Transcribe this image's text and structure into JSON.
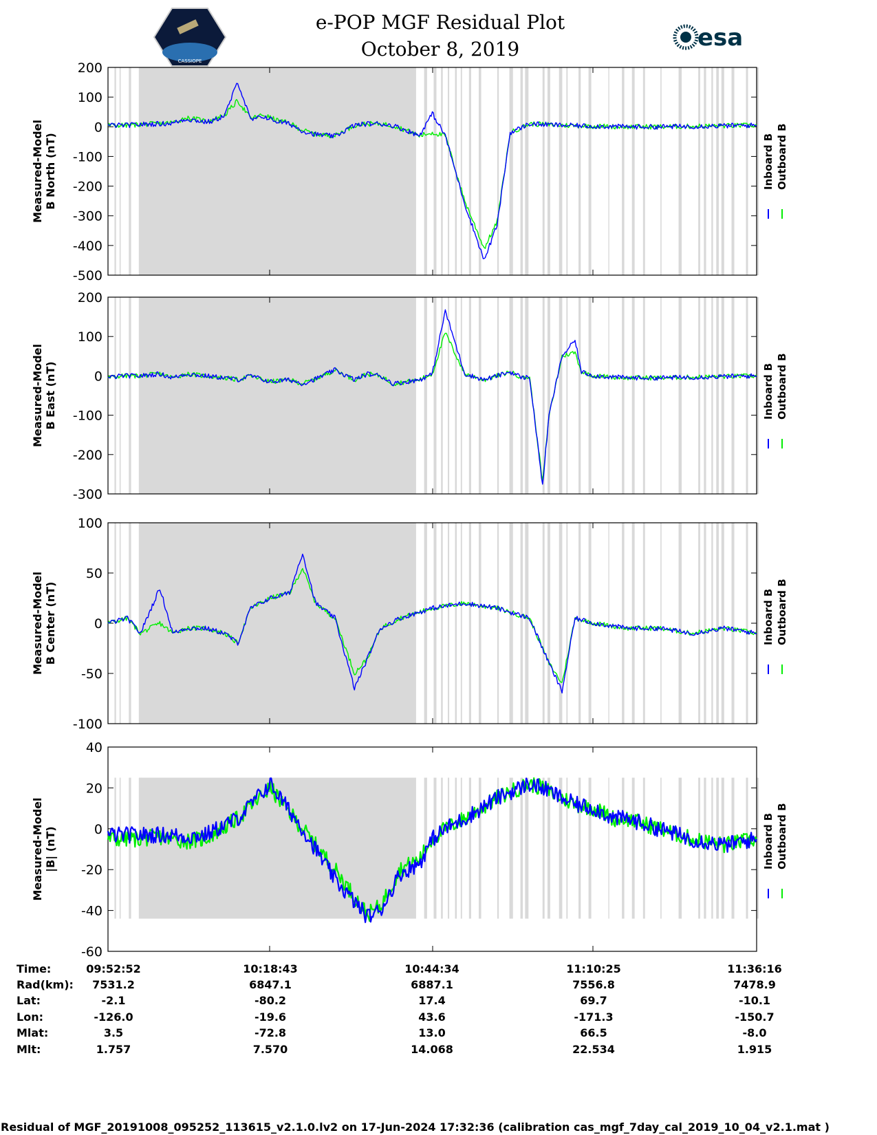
{
  "header": {
    "title_line1": "e-POP MGF Residual Plot",
    "title_line2": "October 8, 2019",
    "esa_logo_text": "esa",
    "cassiope_logo_text": "CASSIOPE"
  },
  "colors": {
    "inboard": "#0000ff",
    "outboard": "#00ee00",
    "gap_shading": "#d9d9d9",
    "axis": "#000000"
  },
  "legend": {
    "inboard_label": "Inboard B",
    "outboard_label": "Outboard B"
  },
  "chart_data": [
    {
      "type": "line",
      "id": "north",
      "ylabel_line1": "Measured-Model",
      "ylabel_line2": "B North (nT)",
      "ylim": [
        -500,
        200
      ],
      "yticks": [
        200,
        100,
        0,
        -100,
        -200,
        -300,
        -400,
        -500
      ],
      "ytick_labels": [
        "200",
        "100",
        "0",
        "-100",
        "-200",
        "-300",
        "-400",
        "-500"
      ],
      "series": [
        {
          "name": "Outboard B",
          "x": [
            0,
            2,
            3,
            5,
            8,
            10,
            12,
            14,
            15,
            16,
            18,
            20,
            22,
            24,
            26,
            28,
            30,
            32,
            35,
            38,
            40,
            42,
            44,
            46,
            48,
            50,
            52,
            55,
            58,
            60,
            62,
            65,
            70,
            75,
            80,
            85,
            100
          ],
          "values": [
            5,
            5,
            5,
            8,
            10,
            14,
            30,
            24,
            20,
            22,
            40,
            88,
            28,
            40,
            22,
            12,
            -12,
            -25,
            -30,
            5,
            10,
            10,
            4,
            -12,
            -30,
            -20,
            -30,
            -250,
            -410,
            -320,
            -20,
            10,
            5,
            2,
            0,
            0,
            5
          ]
        },
        {
          "name": "Inboard B",
          "x": [
            0,
            2,
            3,
            5,
            8,
            10,
            12,
            14,
            15,
            16,
            18,
            20,
            22,
            24,
            26,
            28,
            30,
            32,
            35,
            38,
            40,
            42,
            44,
            46,
            48,
            50,
            52,
            55,
            58,
            60,
            62,
            65,
            70,
            75,
            80,
            85,
            100
          ],
          "values": [
            5,
            5,
            5,
            8,
            10,
            12,
            26,
            20,
            16,
            18,
            38,
            152,
            22,
            35,
            18,
            10,
            -14,
            -26,
            -32,
            5,
            10,
            10,
            4,
            -12,
            -30,
            45,
            -30,
            -260,
            -450,
            -330,
            -20,
            10,
            5,
            2,
            0,
            0,
            5
          ]
        }
      ]
    },
    {
      "type": "line",
      "id": "east",
      "ylabel_line1": "Measured-Model",
      "ylabel_line2": "B East (nT)",
      "ylim": [
        -300,
        200
      ],
      "yticks": [
        200,
        100,
        0,
        -100,
        -200,
        -300
      ],
      "ytick_labels": [
        "200",
        "100",
        "0",
        "-100",
        "-200",
        "-300"
      ],
      "series": [
        {
          "name": "Outboard B",
          "x": [
            0,
            2,
            3,
            5,
            8,
            10,
            12,
            15,
            18,
            20,
            22,
            25,
            28,
            30,
            32,
            35,
            38,
            40,
            42,
            44,
            48,
            50,
            52,
            55,
            58,
            62,
            64,
            65,
            67,
            68,
            70,
            72,
            73,
            75,
            80,
            85,
            100
          ],
          "values": [
            -5,
            0,
            0,
            0,
            5,
            -5,
            5,
            0,
            -5,
            -10,
            0,
            -15,
            -10,
            -20,
            -8,
            15,
            -10,
            5,
            0,
            -20,
            -10,
            5,
            110,
            5,
            -10,
            10,
            -5,
            -3,
            -270,
            -100,
            50,
            60,
            10,
            0,
            -5,
            -5,
            0
          ]
        },
        {
          "name": "Inboard B",
          "x": [
            0,
            2,
            3,
            5,
            8,
            10,
            12,
            15,
            18,
            20,
            22,
            25,
            28,
            30,
            32,
            35,
            38,
            40,
            42,
            44,
            48,
            50,
            52,
            55,
            58,
            62,
            64,
            65,
            67,
            68,
            70,
            72,
            73,
            75,
            80,
            85,
            100
          ],
          "values": [
            -5,
            0,
            0,
            0,
            5,
            -5,
            5,
            0,
            -5,
            -10,
            0,
            -15,
            -10,
            -20,
            -8,
            15,
            -10,
            5,
            0,
            -20,
            -10,
            5,
            165,
            5,
            -10,
            10,
            -5,
            -3,
            -278,
            -100,
            50,
            90,
            10,
            0,
            -5,
            -5,
            0
          ]
        }
      ]
    },
    {
      "type": "line",
      "id": "center",
      "ylabel_line1": "Measured-Model",
      "ylabel_line2": "B Center (nT)",
      "ylim": [
        -100,
        100
      ],
      "yticks": [
        100,
        50,
        0,
        -50,
        -100
      ],
      "ytick_labels": [
        "100",
        "50",
        "0",
        "-50",
        "-100"
      ],
      "series": [
        {
          "name": "Outboard B",
          "x": [
            0,
            3,
            5,
            8,
            10,
            12,
            15,
            18,
            20,
            22,
            25,
            28,
            30,
            32,
            35,
            38,
            40,
            42,
            45,
            50,
            55,
            60,
            65,
            68,
            70,
            72,
            75,
            80,
            85,
            90,
            95,
            100
          ],
          "values": [
            0,
            5,
            -10,
            0,
            -10,
            -5,
            -5,
            -10,
            -20,
            15,
            25,
            30,
            55,
            20,
            5,
            -50,
            -35,
            -5,
            5,
            15,
            20,
            15,
            5,
            -40,
            -60,
            5,
            0,
            -5,
            -5,
            -10,
            -5,
            -10
          ]
        },
        {
          "name": "Inboard B",
          "x": [
            0,
            3,
            5,
            8,
            10,
            12,
            15,
            18,
            20,
            22,
            25,
            28,
            30,
            32,
            35,
            38,
            40,
            42,
            45,
            50,
            55,
            60,
            65,
            68,
            70,
            72,
            75,
            80,
            85,
            90,
            95,
            100
          ],
          "values": [
            0,
            5,
            -10,
            35,
            -10,
            -5,
            -5,
            -10,
            -20,
            15,
            25,
            30,
            70,
            20,
            5,
            -65,
            -35,
            -5,
            5,
            15,
            20,
            15,
            5,
            -40,
            -68,
            5,
            0,
            -5,
            -5,
            -10,
            -5,
            -10
          ]
        }
      ]
    },
    {
      "type": "line",
      "id": "total",
      "ylabel_line1": "Measured-Model",
      "ylabel_line2": "|B| (nT)",
      "ylim": [
        -60,
        40
      ],
      "yticks": [
        40,
        20,
        0,
        -20,
        -40,
        -60
      ],
      "ytick_labels": [
        "40",
        "20",
        "0",
        "-20",
        "-40",
        "-60"
      ],
      "series": [
        {
          "name": "Outboard B",
          "x": [
            0,
            3,
            5,
            8,
            10,
            12,
            15,
            20,
            25,
            30,
            35,
            40,
            42,
            45,
            48,
            50,
            52,
            55,
            60,
            62,
            65,
            67,
            70,
            72,
            75,
            78,
            80,
            85,
            90,
            95,
            100
          ],
          "values": [
            -5,
            -5,
            -5,
            -4,
            -5,
            -6,
            -5,
            5,
            20,
            0,
            -20,
            -42,
            -38,
            -20,
            -15,
            -5,
            0,
            5,
            15,
            18,
            22,
            20,
            15,
            12,
            10,
            5,
            5,
            0,
            -5,
            -8,
            -5
          ]
        },
        {
          "name": "Inboard B",
          "x": [
            0,
            3,
            5,
            8,
            10,
            12,
            15,
            20,
            25,
            30,
            35,
            40,
            42,
            45,
            48,
            50,
            52,
            55,
            60,
            62,
            65,
            67,
            70,
            72,
            75,
            78,
            80,
            85,
            90,
            95,
            100
          ],
          "values": [
            -3,
            -3,
            -3,
            -3,
            -3,
            -4,
            -3,
            5,
            22,
            0,
            -25,
            -43,
            -40,
            -22,
            -17,
            -5,
            0,
            5,
            15,
            18,
            22,
            20,
            15,
            12,
            10,
            5,
            5,
            0,
            -5,
            -8,
            -5
          ]
        }
      ]
    }
  ],
  "info_table": {
    "row_labels": [
      "Time:",
      "Rad(km):",
      "Lat:",
      "Lon:",
      "Mlat:",
      "Mlt:"
    ],
    "columns": [
      [
        "09:52:52",
        "7531.2",
        "-2.1",
        "-126.0",
        "3.5",
        "1.757"
      ],
      [
        "10:18:43",
        "6847.1",
        "-80.2",
        "-19.6",
        "-72.8",
        "7.570"
      ],
      [
        "10:44:34",
        "6887.1",
        "17.4",
        "43.6",
        "13.0",
        "14.068"
      ],
      [
        "11:10:25",
        "7556.8",
        "69.7",
        "-171.3",
        "66.5",
        "22.534"
      ],
      [
        "11:36:16",
        "7478.9",
        "-10.1",
        "-150.7",
        "-8.0",
        "1.915"
      ]
    ]
  },
  "footer": "Residual of MGF_20191008_095252_113615_v2.1.0.lv2 on 17-Jun-2024 17:32:36 (calibration cas_mgf_7day_cal_2019_10_04_v2.1.mat )"
}
